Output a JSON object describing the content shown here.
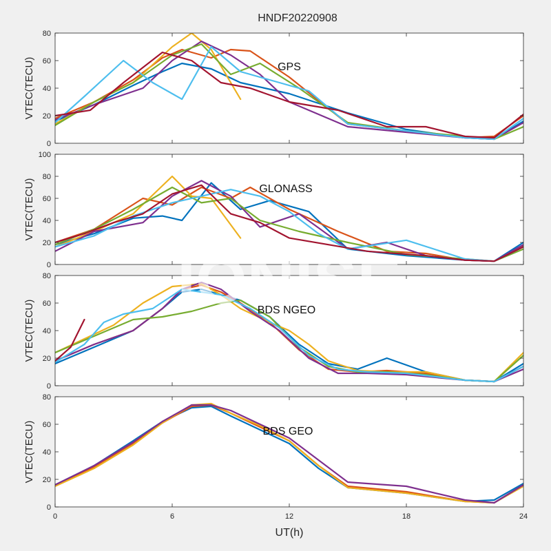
{
  "figure": {
    "title": "HNDF20220908",
    "watermark": "IONISE",
    "xlabel": "UT(h)",
    "xticks": [
      0,
      6,
      12,
      18,
      24
    ],
    "xlim": [
      0,
      24
    ],
    "colors": [
      "#0072BD",
      "#D95319",
      "#EDB120",
      "#7E2F8E",
      "#77AC30",
      "#4DBEEE",
      "#A2142F"
    ]
  },
  "chart_data": [
    {
      "type": "line",
      "label": "GPS",
      "ylabel": "VTEC(TECU)",
      "ylim": [
        0,
        80
      ],
      "yticks": [
        0,
        20,
        40,
        60,
        80
      ],
      "series": [
        {
          "x": [
            0,
            2,
            4,
            5.5,
            6.5,
            8,
            9.5,
            12,
            15,
            18,
            21,
            22.5,
            24
          ],
          "y": [
            16,
            28,
            42,
            52,
            58,
            54,
            44,
            36,
            22,
            10,
            4,
            3,
            16
          ]
        },
        {
          "x": [
            0,
            2,
            4,
            5.5,
            6.5,
            8,
            9,
            10,
            12,
            15,
            18,
            21,
            22.5,
            24
          ],
          "y": [
            18,
            30,
            46,
            62,
            68,
            62,
            68,
            67,
            48,
            14,
            9,
            4,
            5,
            20
          ]
        },
        {
          "x": [
            0,
            2,
            4,
            6,
            7,
            8,
            9.5
          ],
          "y": [
            14,
            30,
            44,
            70,
            80,
            68,
            32
          ]
        },
        {
          "x": [
            0,
            2,
            4.5,
            6,
            7.5,
            9,
            10.5,
            12,
            15,
            18,
            21,
            22.5,
            24
          ],
          "y": [
            17,
            28,
            40,
            60,
            74,
            64,
            50,
            30,
            12,
            8,
            4,
            3,
            15
          ]
        },
        {
          "x": [
            0,
            2,
            4,
            6,
            7.5,
            9,
            10.5,
            12.5,
            15,
            18,
            21,
            22.5,
            24
          ],
          "y": [
            13,
            30,
            44,
            64,
            72,
            50,
            58,
            40,
            15,
            9,
            5,
            3,
            12
          ]
        },
        {
          "x": [
            0,
            1.5,
            3.5,
            5,
            6.5,
            8,
            9.5,
            11.5,
            13,
            15,
            18,
            21,
            22.5,
            24
          ],
          "y": [
            15,
            34,
            60,
            44,
            32,
            70,
            52,
            44,
            38,
            14,
            9,
            4,
            3,
            18
          ]
        },
        {
          "x": [
            0,
            1.8,
            3.5,
            5.5,
            7,
            8.5,
            10,
            12,
            14.5,
            17,
            19,
            21,
            22.5,
            24
          ],
          "y": [
            20,
            24,
            44,
            66,
            60,
            44,
            40,
            30,
            24,
            12,
            12,
            5,
            4,
            21
          ]
        }
      ]
    },
    {
      "type": "line",
      "label": "GLONASS",
      "ylabel": "VTEC(TECU)",
      "ylim": [
        0,
        100
      ],
      "yticks": [
        0,
        20,
        40,
        60,
        80,
        100
      ],
      "series": [
        {
          "x": [
            0,
            2,
            4,
            5.5,
            6.5,
            8,
            9.5,
            11,
            13,
            15,
            18,
            21,
            22.5,
            24
          ],
          "y": [
            18,
            28,
            42,
            44,
            40,
            74,
            50,
            58,
            48,
            14,
            8,
            4,
            3,
            20
          ]
        },
        {
          "x": [
            0,
            2,
            4.5,
            6,
            7.5,
            9,
            10,
            12,
            14.5,
            17,
            19,
            21,
            22.5,
            24
          ],
          "y": [
            20,
            32,
            60,
            54,
            70,
            60,
            70,
            50,
            30,
            12,
            10,
            4,
            3,
            17
          ]
        },
        {
          "x": [
            0,
            2,
            4,
            6,
            7,
            8,
            9.5
          ],
          "y": [
            16,
            30,
            46,
            80,
            62,
            60,
            24
          ]
        },
        {
          "x": [
            0,
            2,
            4.5,
            6,
            7.5,
            9,
            10.5,
            12.5,
            15,
            17,
            19,
            21,
            22.5,
            24
          ],
          "y": [
            12,
            30,
            38,
            62,
            76,
            62,
            34,
            46,
            14,
            20,
            8,
            4,
            3,
            18
          ]
        },
        {
          "x": [
            0,
            2,
            4,
            6,
            7.5,
            9,
            10.5,
            12.5,
            15,
            18,
            21,
            22.5,
            24
          ],
          "y": [
            18,
            32,
            50,
            70,
            56,
            60,
            40,
            30,
            20,
            9,
            5,
            3,
            14
          ]
        },
        {
          "x": [
            0,
            2,
            4,
            6,
            7.5,
            9,
            10.5,
            12,
            13.5,
            15,
            18,
            21,
            22.5,
            24
          ],
          "y": [
            16,
            26,
            44,
            56,
            62,
            68,
            62,
            48,
            28,
            14,
            22,
            5,
            3,
            16
          ]
        },
        {
          "x": [
            0,
            1.5,
            3,
            4.5,
            6,
            7.5,
            9,
            10.5,
            12,
            14,
            16,
            19,
            21,
            22.5,
            24
          ],
          "y": [
            20,
            28,
            38,
            46,
            64,
            72,
            46,
            38,
            24,
            18,
            12,
            8,
            4,
            3,
            16
          ]
        }
      ]
    },
    {
      "type": "line",
      "label": "BDS NGEO",
      "ylabel": "VTEC(TECU)",
      "ylim": [
        0,
        80
      ],
      "yticks": [
        0,
        20,
        40,
        60,
        80
      ],
      "series": [
        {
          "x": [
            0,
            2,
            4,
            5.5,
            6.5,
            7.5,
            8.5,
            9.5,
            11,
            12.5,
            14,
            15.5,
            17,
            19,
            21,
            22.5,
            24
          ],
          "y": [
            16,
            28,
            40,
            56,
            68,
            70,
            66,
            62,
            50,
            30,
            16,
            12,
            20,
            10,
            4,
            3,
            16
          ]
        },
        {
          "x": [
            0,
            2,
            4,
            5.5,
            6.5,
            7.5,
            8.5,
            9.5,
            11,
            12.5,
            14,
            15.5,
            17,
            19,
            21,
            22.5,
            24
          ],
          "y": [
            18,
            30,
            40,
            56,
            70,
            73,
            68,
            60,
            46,
            26,
            12,
            10,
            11,
            9,
            4,
            3,
            14
          ]
        },
        {
          "x": [
            0,
            1.5,
            3,
            4.5,
            6,
            7.5,
            8.5,
            9.5,
            11,
            12,
            13,
            14,
            15.5,
            17,
            19,
            21,
            22.5,
            24
          ],
          "y": [
            24,
            34,
            44,
            60,
            72,
            74,
            66,
            56,
            46,
            40,
            30,
            18,
            11,
            10,
            10,
            4,
            3,
            24
          ]
        },
        {
          "x": [
            0,
            2,
            4,
            5.5,
            6.5,
            7.5,
            8.5,
            10,
            11.5,
            13,
            14.5,
            16,
            18,
            21,
            22.5,
            24
          ],
          "y": [
            18,
            30,
            40,
            56,
            70,
            75,
            70,
            54,
            40,
            20,
            9,
            9,
            8,
            4,
            3,
            12
          ]
        },
        {
          "x": [
            0,
            2,
            4,
            5.5,
            7,
            8.5,
            9.5,
            11,
            12.5,
            14,
            15.5,
            17,
            19,
            21,
            22.5,
            24
          ],
          "y": [
            24,
            36,
            48,
            50,
            54,
            60,
            62,
            50,
            28,
            14,
            10,
            10,
            8,
            4,
            3,
            22
          ]
        },
        {
          "x": [
            0,
            1.5,
            2.5,
            3.5,
            5,
            6.5,
            7.5,
            8.5,
            10,
            11.5,
            13,
            14.5,
            16,
            18,
            21,
            22.5,
            24
          ],
          "y": [
            17,
            30,
            46,
            52,
            56,
            70,
            68,
            66,
            56,
            42,
            22,
            12,
            10,
            9,
            4,
            3,
            14
          ]
        },
        {
          "x": [
            0,
            0.8,
            1.5
          ],
          "y": [
            18,
            28,
            48
          ]
        }
      ]
    },
    {
      "type": "line",
      "label": "BDS GEO",
      "ylabel": "VTEC(TECU)",
      "ylim": [
        0,
        80
      ],
      "yticks": [
        0,
        20,
        40,
        60,
        80
      ],
      "series": [
        {
          "x": [
            0,
            2,
            4,
            5.5,
            7,
            8,
            9,
            10.5,
            12,
            13.5,
            15,
            18,
            21,
            22.5,
            24
          ],
          "y": [
            16,
            30,
            48,
            62,
            72,
            73,
            66,
            56,
            46,
            28,
            14,
            10,
            4,
            5,
            17
          ]
        },
        {
          "x": [
            0,
            2,
            4,
            5.5,
            7,
            8,
            9,
            10.5,
            12,
            13.5,
            15,
            18,
            21,
            22.5,
            24
          ],
          "y": [
            16,
            29,
            46,
            61,
            73,
            74,
            68,
            58,
            48,
            30,
            15,
            11,
            4,
            3,
            16
          ]
        },
        {
          "x": [
            0,
            2,
            4,
            5.5,
            7,
            8,
            9,
            10.5,
            12,
            13.5,
            15,
            18,
            21,
            22.5,
            24
          ],
          "y": [
            15,
            28,
            45,
            61,
            74,
            75,
            68,
            59,
            48,
            30,
            14,
            10,
            4,
            3,
            15
          ]
        },
        {
          "x": [
            0,
            2,
            4,
            5.5,
            7,
            8,
            9,
            10.5,
            12,
            13.5,
            15,
            18,
            21,
            22.5,
            24
          ],
          "y": [
            16,
            30,
            47,
            62,
            74,
            74,
            70,
            60,
            50,
            34,
            18,
            15,
            5,
            3,
            16
          ]
        }
      ]
    }
  ]
}
